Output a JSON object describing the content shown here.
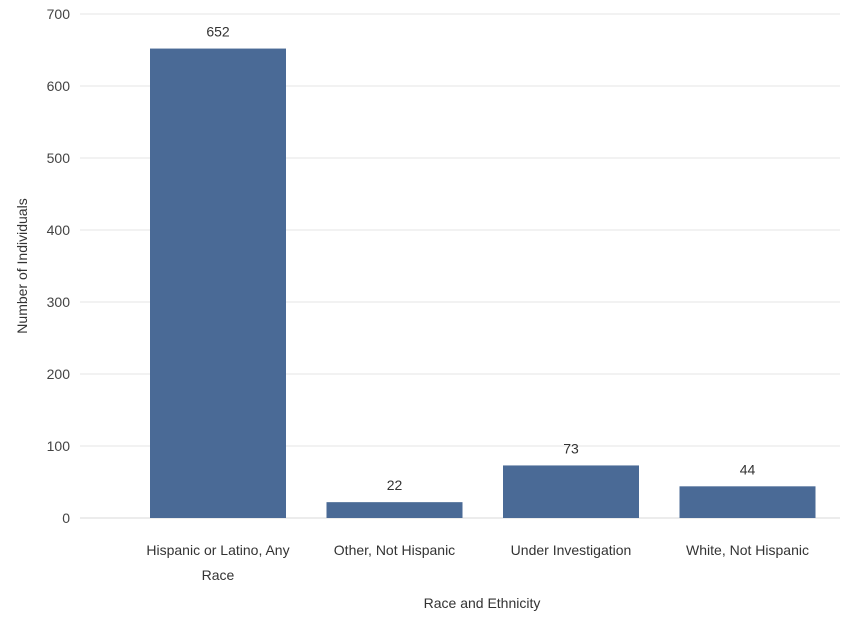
{
  "chart_data": {
    "type": "bar",
    "title": "",
    "xlabel": "Race and Ethnicity",
    "ylabel": "Number of Individuals",
    "categories": [
      [
        "Hispanic or Latino, Any",
        "Race"
      ],
      [
        "Other, Not Hispanic"
      ],
      [
        "Under Investigation"
      ],
      [
        "White, Not Hispanic"
      ]
    ],
    "values": [
      652,
      22,
      73,
      44
    ],
    "data_labels": [
      "652",
      "22",
      "73",
      "44"
    ],
    "ylim": [
      0,
      700
    ],
    "yticks": [
      "0",
      "100",
      "200",
      "300",
      "400",
      "500",
      "600",
      "700"
    ],
    "grid": true,
    "legend": "none",
    "bar_color": "#4a6a96"
  }
}
